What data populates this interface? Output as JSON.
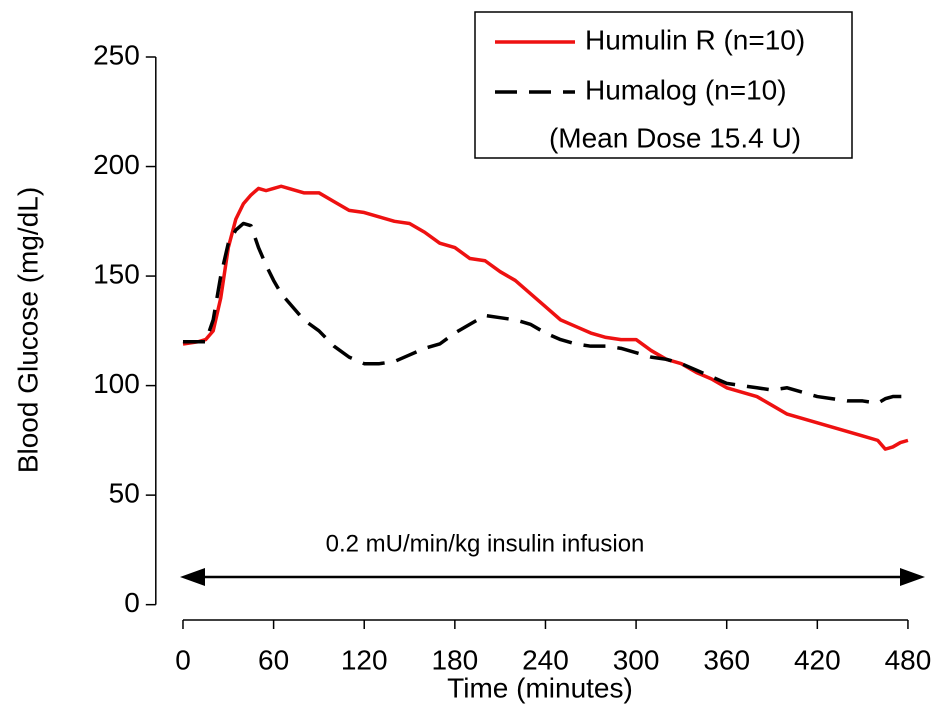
{
  "chart_data": {
    "type": "line",
    "x_label": "Time (minutes)",
    "y_label": "Blood Glucose (mg/dL)",
    "annotation": "0.2 mU/min/kg insulin infusion",
    "legend_note": "(Mean Dose 15.4 U)",
    "legend_position": "upper right",
    "x": [
      0,
      10,
      15,
      20,
      25,
      30,
      35,
      40,
      45,
      50,
      55,
      60,
      65,
      70,
      80,
      90,
      100,
      110,
      120,
      130,
      140,
      150,
      160,
      170,
      180,
      190,
      200,
      210,
      220,
      230,
      240,
      250,
      260,
      270,
      280,
      290,
      300,
      310,
      320,
      330,
      340,
      350,
      360,
      370,
      380,
      390,
      400,
      410,
      420,
      430,
      440,
      450,
      460,
      465,
      470,
      475,
      480
    ],
    "series": [
      {
        "name": "Humulin R (n=10)",
        "color": "#ee1111",
        "dash": false,
        "values": [
          119,
          120,
          121,
          125,
          140,
          163,
          176,
          183,
          187,
          190,
          189,
          190,
          191,
          190,
          188,
          188,
          184,
          180,
          179,
          177,
          175,
          174,
          170,
          165,
          163,
          158,
          157,
          152,
          148,
          142,
          136,
          130,
          127,
          124,
          122,
          121,
          121,
          116,
          112,
          110,
          106,
          103,
          99,
          97,
          95,
          91,
          87,
          85,
          83,
          81,
          79,
          77,
          75,
          71,
          72,
          74,
          75
        ]
      },
      {
        "name": "Humalog (n=10)",
        "color": "#000000",
        "dash": true,
        "values": [
          120,
          120,
          120,
          130,
          150,
          165,
          171,
          174,
          173,
          163,
          155,
          148,
          142,
          138,
          130,
          125,
          118,
          113,
          110,
          110,
          111,
          114,
          117,
          119,
          124,
          128,
          132,
          131,
          130,
          128,
          124,
          121,
          119,
          118,
          118,
          117,
          115,
          113,
          112,
          110,
          107,
          104,
          101,
          100,
          99,
          98,
          99,
          97,
          95,
          94,
          93,
          93,
          92,
          94,
          95,
          95,
          95
        ]
      }
    ],
    "xlim": [
      -18,
      485
    ],
    "ylim": [
      -7,
      250
    ],
    "xticks": [
      0,
      60,
      120,
      180,
      240,
      300,
      360,
      420,
      480
    ],
    "yticks": [
      0,
      50,
      100,
      150,
      200,
      250
    ]
  }
}
